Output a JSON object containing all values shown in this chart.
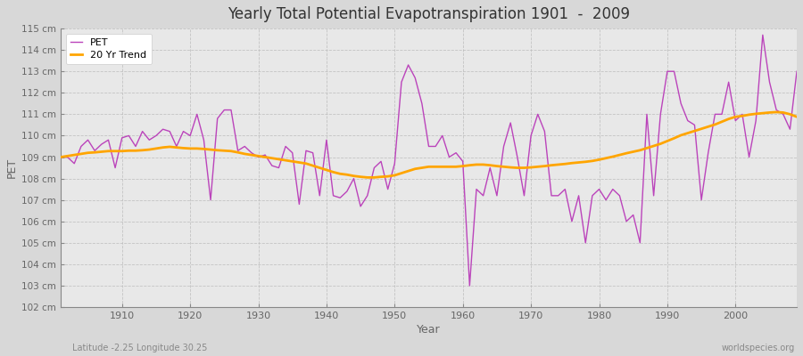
{
  "title": "Yearly Total Potential Evapotranspiration 1901  -  2009",
  "xlabel": "Year",
  "ylabel": "PET",
  "subtitle_left": "Latitude -2.25 Longitude 30.25",
  "subtitle_right": "worldspecies.org",
  "pet_color": "#BB44BB",
  "trend_color": "#FFA500",
  "outer_bg": "#D8D8D8",
  "inner_bg": "#E8E8E8",
  "grid_color": "#CCCCCC",
  "ylim": [
    102,
    115
  ],
  "xlim_left": 1901,
  "xlim_right": 2009,
  "years": [
    1901,
    1902,
    1903,
    1904,
    1905,
    1906,
    1907,
    1908,
    1909,
    1910,
    1911,
    1912,
    1913,
    1914,
    1915,
    1916,
    1917,
    1918,
    1919,
    1920,
    1921,
    1922,
    1923,
    1924,
    1925,
    1926,
    1927,
    1928,
    1929,
    1930,
    1931,
    1932,
    1933,
    1934,
    1935,
    1936,
    1937,
    1938,
    1939,
    1940,
    1941,
    1942,
    1943,
    1944,
    1945,
    1946,
    1947,
    1948,
    1949,
    1950,
    1951,
    1952,
    1953,
    1954,
    1955,
    1956,
    1957,
    1958,
    1959,
    1960,
    1961,
    1962,
    1963,
    1964,
    1965,
    1966,
    1967,
    1968,
    1969,
    1970,
    1971,
    1972,
    1973,
    1974,
    1975,
    1976,
    1977,
    1978,
    1979,
    1980,
    1981,
    1982,
    1983,
    1984,
    1985,
    1986,
    1987,
    1988,
    1989,
    1990,
    1991,
    1992,
    1993,
    1994,
    1995,
    1996,
    1997,
    1998,
    1999,
    2000,
    2001,
    2002,
    2003,
    2004,
    2005,
    2006,
    2007,
    2008,
    2009
  ],
  "pet": [
    109.0,
    109.0,
    108.7,
    109.5,
    109.8,
    109.3,
    109.6,
    109.8,
    108.5,
    109.9,
    110.0,
    109.5,
    110.2,
    109.8,
    110.0,
    110.3,
    110.2,
    109.5,
    110.2,
    110.0,
    111.0,
    109.8,
    107.0,
    110.8,
    111.2,
    111.2,
    109.3,
    109.5,
    109.2,
    109.0,
    109.1,
    108.6,
    108.5,
    109.5,
    109.2,
    106.8,
    109.3,
    109.2,
    107.2,
    109.8,
    107.2,
    107.1,
    107.4,
    108.0,
    106.7,
    107.2,
    108.5,
    108.8,
    107.5,
    108.7,
    112.5,
    113.3,
    112.7,
    111.5,
    109.5,
    109.5,
    110.0,
    109.0,
    109.2,
    108.8,
    103.0,
    107.5,
    107.2,
    108.5,
    107.2,
    109.5,
    110.6,
    109.0,
    107.2,
    110.0,
    111.0,
    110.2,
    107.2,
    107.2,
    107.5,
    106.0,
    107.2,
    105.0,
    107.2,
    107.5,
    107.0,
    107.5,
    107.2,
    106.0,
    106.3,
    105.0,
    111.0,
    107.2,
    111.0,
    113.0,
    113.0,
    111.5,
    110.7,
    110.5,
    107.0,
    109.2,
    111.0,
    111.0,
    112.5,
    110.7,
    111.0,
    109.0,
    110.7,
    114.7,
    112.5,
    111.2,
    111.0,
    110.3,
    113.0
  ],
  "trend": [
    109.0,
    109.05,
    109.1,
    109.15,
    109.2,
    109.22,
    109.25,
    109.28,
    109.28,
    109.28,
    109.3,
    109.3,
    109.32,
    109.35,
    109.4,
    109.45,
    109.48,
    109.45,
    109.42,
    109.4,
    109.4,
    109.38,
    109.35,
    109.32,
    109.3,
    109.28,
    109.22,
    109.15,
    109.1,
    109.05,
    109.0,
    108.95,
    108.9,
    108.85,
    108.8,
    108.75,
    108.7,
    108.6,
    108.5,
    108.4,
    108.3,
    108.22,
    108.18,
    108.12,
    108.08,
    108.05,
    108.05,
    108.08,
    108.1,
    108.15,
    108.25,
    108.35,
    108.45,
    108.5,
    108.55,
    108.55,
    108.55,
    108.55,
    108.55,
    108.58,
    108.62,
    108.65,
    108.65,
    108.62,
    108.58,
    108.55,
    108.52,
    108.5,
    108.5,
    108.52,
    108.55,
    108.58,
    108.62,
    108.65,
    108.68,
    108.72,
    108.75,
    108.78,
    108.82,
    108.88,
    108.95,
    109.02,
    109.1,
    109.18,
    109.25,
    109.32,
    109.42,
    109.52,
    109.62,
    109.75,
    109.88,
    110.02,
    110.12,
    110.22,
    110.32,
    110.42,
    110.52,
    110.65,
    110.78,
    110.88,
    110.92,
    110.98,
    111.02,
    111.05,
    111.08,
    111.1,
    111.08,
    111.0,
    110.88
  ]
}
